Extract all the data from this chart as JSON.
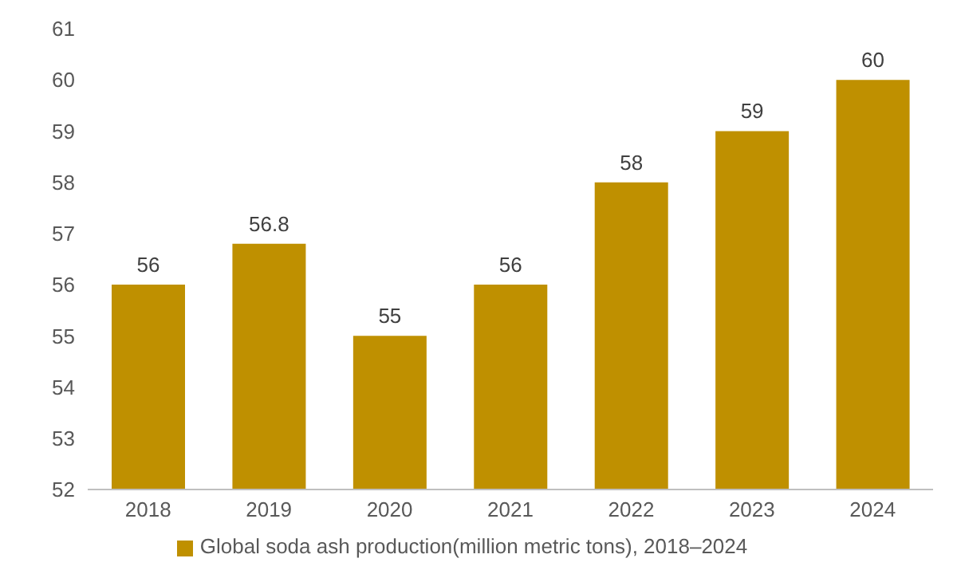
{
  "chart_data": {
    "type": "bar",
    "categories": [
      "2018",
      "2019",
      "2020",
      "2021",
      "2022",
      "2023",
      "2024"
    ],
    "series": [
      {
        "name": "Global soda ash production(million metric tons), 2018–2024",
        "color": "#bf9000",
        "values": [
          56,
          56.8,
          55,
          56,
          58,
          59,
          60
        ]
      }
    ],
    "ylim": [
      52,
      61
    ],
    "yticks": [
      52,
      53,
      54,
      55,
      56,
      57,
      58,
      59,
      60,
      61
    ],
    "grid": false,
    "legend": "bottom",
    "data_labels": true
  }
}
